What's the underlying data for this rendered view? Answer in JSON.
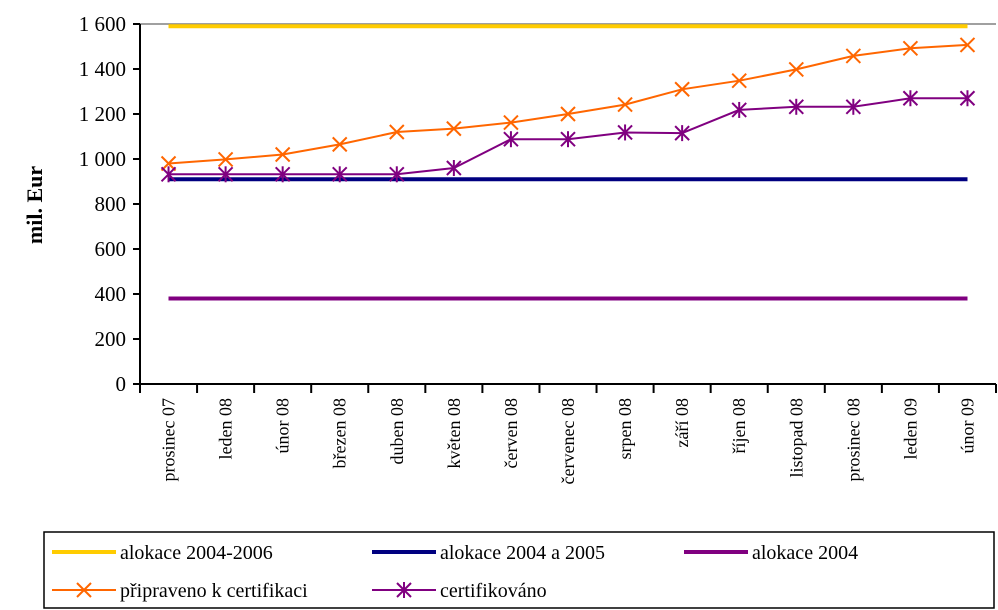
{
  "chart_data": {
    "type": "line",
    "ylabel": "mil. Eur",
    "xlabel": "",
    "ylim": [
      0,
      1600
    ],
    "yticks": [
      0,
      200,
      400,
      600,
      800,
      1000,
      1200,
      1400,
      1600
    ],
    "ytick_labels": [
      "0",
      "200",
      "400",
      "600",
      "800",
      "1 000",
      "1 200",
      "1 400",
      "1 600"
    ],
    "categories": [
      "prosinec 07",
      "leden 08",
      "únor 08",
      "březen 08",
      "duben 08",
      "květen 08",
      "červen 08",
      "červenec 08",
      "srpen 08",
      "září 08",
      "říjen 08",
      "listopad 08",
      "prosinec 08",
      "leden 09",
      "únor 09"
    ],
    "grid": false,
    "legend_position": "bottom",
    "series": [
      {
        "name": "alokace 2004-2006",
        "color": "#FFCC00",
        "marker": "none",
        "values": [
          1590,
          1590,
          1590,
          1590,
          1590,
          1590,
          1590,
          1590,
          1590,
          1590,
          1590,
          1590,
          1590,
          1590,
          1590
        ]
      },
      {
        "name": "alokace 2004 a 2005",
        "color": "#000080",
        "marker": "none",
        "values": [
          910,
          910,
          910,
          910,
          910,
          910,
          910,
          910,
          910,
          910,
          910,
          910,
          910,
          910,
          910
        ]
      },
      {
        "name": "alokace 2004",
        "color": "#800080",
        "marker": "none",
        "values": [
          380,
          380,
          380,
          380,
          380,
          380,
          380,
          380,
          380,
          380,
          380,
          380,
          380,
          380,
          380
        ]
      },
      {
        "name": "připraveno k certifikaci",
        "color": "#FF6600",
        "marker": "x",
        "values": [
          980,
          998,
          1020,
          1065,
          1120,
          1135,
          1162,
          1200,
          1242,
          1310,
          1348,
          1398,
          1458,
          1492,
          1507
        ]
      },
      {
        "name": "certifikováno",
        "color": "#800080",
        "marker": "star",
        "values": [
          932,
          932,
          932,
          932,
          932,
          960,
          1088,
          1088,
          1118,
          1115,
          1218,
          1232,
          1232,
          1270,
          1270
        ]
      }
    ]
  }
}
